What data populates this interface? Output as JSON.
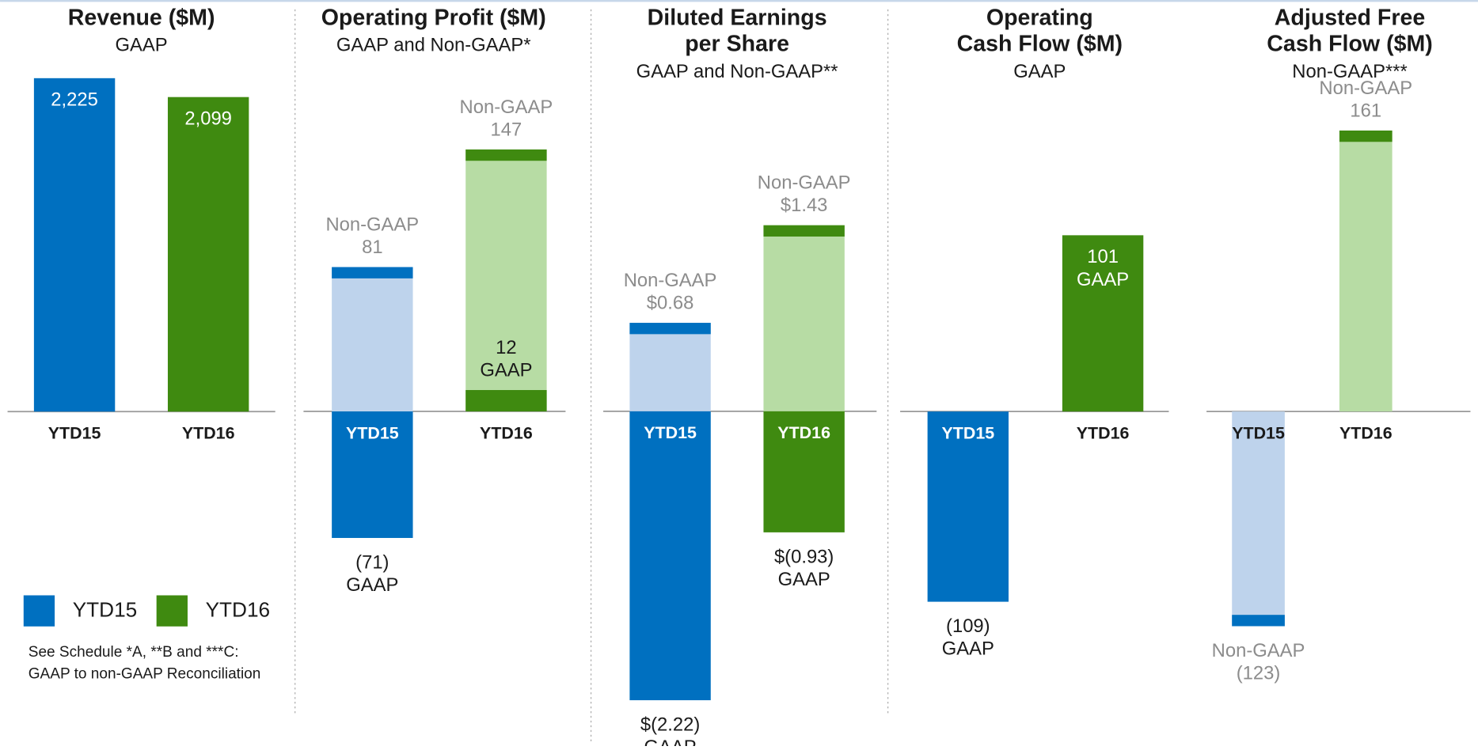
{
  "chart_data": [
    {
      "type": "bar",
      "title": [
        "Revenue ($M)"
      ],
      "subtitle": "GAAP",
      "categories": [
        "YTD15",
        "YTD16"
      ],
      "ylim": [
        -2282,
        2225
      ],
      "series": [
        {
          "values": [
            2225,
            2099
          ],
          "value_labels": [
            "2,225",
            "2,099"
          ],
          "colors": [
            "#0070c0",
            "#3f8a10"
          ]
        }
      ]
    },
    {
      "type": "bar",
      "title": [
        "Operating Profit ($M)"
      ],
      "subtitle": "GAAP and Non-GAAP*",
      "categories": [
        "YTD15",
        "YTD16"
      ],
      "ylim": [
        -192,
        187
      ],
      "series": [
        {
          "name": "Non-GAAP",
          "values": [
            81,
            147
          ],
          "colors": [
            "#bed3ec",
            "#b7dca4"
          ],
          "cap_colors": [
            "#0070c0",
            "#3f8a10"
          ]
        },
        {
          "name": "GAAP",
          "values": [
            -71,
            12
          ],
          "value_labels": [
            "(71)",
            "12"
          ],
          "colors": [
            "#0070c0",
            "#3f8a10"
          ]
        }
      ]
    },
    {
      "type": "bar",
      "title": [
        "Diluted Earnings",
        "per Share"
      ],
      "subtitle": "GAAP and Non-GAAP**",
      "categories": [
        "YTD15",
        "YTD16"
      ],
      "ylim": [
        -2.63,
        2.56
      ],
      "series": [
        {
          "name": "Non-GAAP",
          "values": [
            0.68,
            1.43
          ],
          "value_labels": [
            "$0.68",
            "$1.43"
          ],
          "colors": [
            "#bed3ec",
            "#b7dca4"
          ],
          "cap_colors": [
            "#0070c0",
            "#3f8a10"
          ]
        },
        {
          "name": "GAAP",
          "values": [
            -2.22,
            -0.93
          ],
          "value_labels": [
            "$(2.22)",
            "$(0.93)"
          ],
          "colors": [
            "#0070c0",
            "#3f8a10"
          ]
        }
      ]
    },
    {
      "type": "bar",
      "title": [
        "Operating",
        "Cash Flow ($M)"
      ],
      "subtitle": "GAAP",
      "categories": [
        "YTD15",
        "YTD16"
      ],
      "ylim": [
        -196,
        191
      ],
      "series": [
        {
          "name": "GAAP",
          "values": [
            -109,
            101
          ],
          "value_labels": [
            "(109)",
            "101"
          ],
          "colors": [
            "#0070c0",
            "#3f8a10"
          ]
        }
      ]
    },
    {
      "type": "bar",
      "title": [
        "Adjusted Free",
        "Cash Flow ($M)"
      ],
      "subtitle": "Non-GAAP***",
      "categories": [
        "YTD15",
        "YTD16"
      ],
      "ylim": [
        -196,
        191
      ],
      "series": [
        {
          "name": "Non-GAAP",
          "values": [
            -123,
            161
          ],
          "value_labels": [
            "(123)",
            "161"
          ],
          "colors": [
            "#bed3ec",
            "#b7dca4"
          ],
          "cap_colors": [
            "#0070c0",
            "#3f8a10"
          ]
        }
      ]
    }
  ],
  "legend": [
    {
      "name": "YTD15",
      "color": "#0070c0"
    },
    {
      "name": "YTD16",
      "color": "#3f8a10"
    }
  ],
  "note": [
    "See Schedule *A, **B and  ***C:",
    "GAAP to non-GAAP Reconciliation"
  ]
}
